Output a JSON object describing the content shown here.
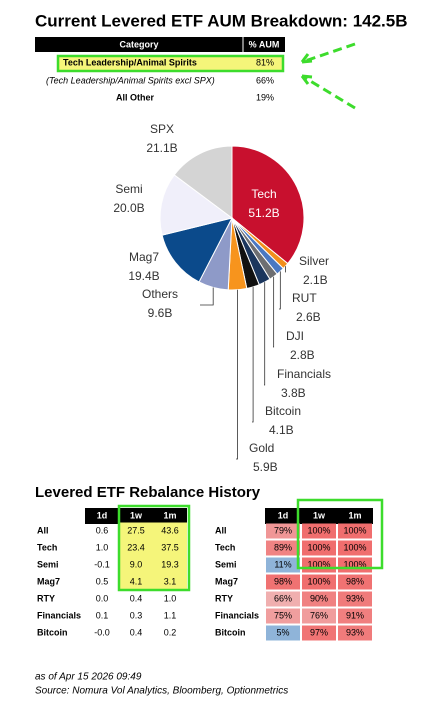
{
  "title": "Current Levered ETF AUM Breakdown: 142.5B",
  "aum_table": {
    "header": [
      "Category",
      "% AUM"
    ],
    "rows": [
      [
        "Tech Leadership/Animal Spirits",
        "81%"
      ],
      [
        "(Tech Leadership/Animal Spirits excl SPX)",
        "66%"
      ],
      [
        "All Other",
        "19%"
      ]
    ]
  },
  "chart_data": {
    "type": "pie",
    "categories": [
      "Tech",
      "Silver",
      "RUT",
      "DJI",
      "Financials",
      "Bitcoin",
      "Gold",
      "Others",
      "Mag7",
      "Semi",
      "SPX"
    ],
    "values": [
      51.2,
      2.1,
      2.6,
      2.8,
      3.8,
      4.1,
      5.9,
      9.6,
      19.4,
      20.0,
      21.1
    ],
    "value_labels": [
      "51.2B",
      "2.1B",
      "2.6B",
      "2.8B",
      "3.8B",
      "4.1B",
      "5.9B",
      "9.6B",
      "19.4B",
      "20.0B",
      "21.1B"
    ],
    "colors": [
      "#c8102e",
      "#f28e1c",
      "#4a78c2",
      "#6d6e71",
      "#1b365d",
      "#111111",
      "#f7941d",
      "#8e9ac8",
      "#0b4a8b",
      "#f0effa",
      "#d4d4d4"
    ]
  },
  "rebalance": {
    "title": "Levered ETF Rebalance History",
    "left": {
      "columns": [
        "1d",
        "1w",
        "1m"
      ],
      "rows": [
        [
          "All",
          "0.6",
          "27.5",
          "43.6"
        ],
        [
          "Tech",
          "1.0",
          "23.4",
          "37.5"
        ],
        [
          "Semi",
          "-0.1",
          "9.0",
          "19.3"
        ],
        [
          "Mag7",
          "0.5",
          "4.1",
          "3.1"
        ],
        [
          "RTY",
          "0.0",
          "0.4",
          "1.0"
        ],
        [
          "Financials",
          "0.1",
          "0.3",
          "1.1"
        ],
        [
          "Bitcoin",
          "-0.0",
          "0.4",
          "0.2"
        ]
      ]
    },
    "right": {
      "columns": [
        "1d",
        "1w",
        "1m"
      ],
      "rows": [
        [
          "All",
          "79%",
          "100%",
          "100%"
        ],
        [
          "Tech",
          "89%",
          "100%",
          "100%"
        ],
        [
          "Semi",
          "11%",
          "100%",
          "100%"
        ],
        [
          "Mag7",
          "98%",
          "100%",
          "98%"
        ],
        [
          "RTY",
          "66%",
          "90%",
          "93%"
        ],
        [
          "Financials",
          "75%",
          "76%",
          "91%"
        ],
        [
          "Bitcoin",
          "5%",
          "97%",
          "93%"
        ]
      ]
    }
  },
  "footer": [
    "as of Apr 15 2026 09:49",
    "Source: Nomura Vol Analytics, Bloomberg, Optionmetrics"
  ]
}
